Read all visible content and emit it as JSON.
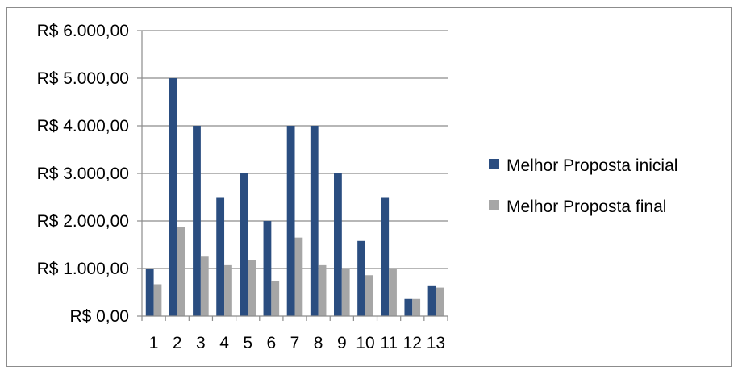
{
  "chart_data": {
    "type": "bar",
    "title": "",
    "xlabel": "",
    "ylabel": "",
    "categories": [
      "1",
      "2",
      "3",
      "4",
      "5",
      "6",
      "7",
      "8",
      "9",
      "10",
      "11",
      "12",
      "13"
    ],
    "series": [
      {
        "name": "Melhor Proposta inicial",
        "color": "#2a4d80",
        "values": [
          1000,
          5000,
          4000,
          2500,
          3000,
          2000,
          4000,
          4000,
          3000,
          1580,
          2500,
          360,
          630
        ]
      },
      {
        "name": "Melhor Proposta final",
        "color": "#a6a6a6",
        "values": [
          670,
          1880,
          1250,
          1070,
          1180,
          730,
          1650,
          1070,
          990,
          860,
          990,
          360,
          600
        ]
      }
    ],
    "ylim": [
      0,
      6000
    ],
    "yticks": [
      0,
      1000,
      2000,
      3000,
      4000,
      5000,
      6000
    ],
    "ytick_labels": [
      "R$ 0,00",
      "R$ 1.000,00",
      "R$ 2.000,00",
      "R$ 3.000,00",
      "R$ 4.000,00",
      "R$ 5.000,00",
      "R$ 6.000,00"
    ],
    "grid": true,
    "legend_position": "right"
  }
}
